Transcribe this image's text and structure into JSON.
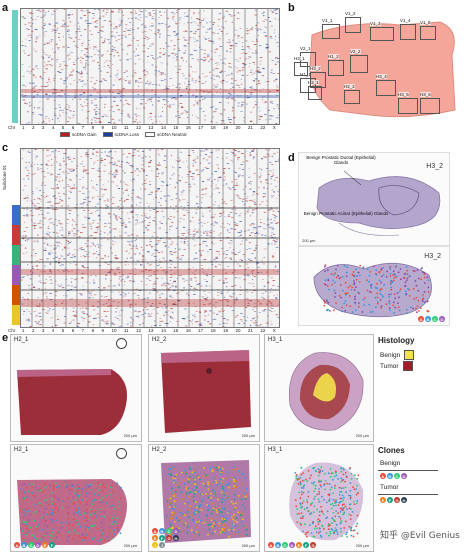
{
  "panels": {
    "a": {
      "letter": "a",
      "row_label": "Chr",
      "chromosomes": [
        "1",
        "2",
        "3",
        "4",
        "5",
        "6",
        "7",
        "8",
        "9",
        "10",
        "11",
        "12",
        "13",
        "14",
        "15",
        "16",
        "17",
        "18",
        "19",
        "20",
        "21",
        "22",
        "X"
      ],
      "legend": [
        {
          "label": "scDNA Gain",
          "color": "#b22222"
        },
        {
          "label": "scDNA Loss",
          "color": "#1f3ea0"
        },
        {
          "label": "scDNA Neutral",
          "color": "#ffffff"
        }
      ]
    },
    "b": {
      "letter": "b",
      "sections": [
        "V1_1",
        "V1_2",
        "V1_3",
        "V1_4",
        "V1_5",
        "V2_1",
        "V2_2",
        "H1_1",
        "H1_2",
        "H2_1",
        "H2_2",
        "H3_1",
        "H3_2",
        "H3_4",
        "H3_5",
        "H3_6"
      ]
    },
    "c": {
      "letter": "c",
      "row_label": "Chr",
      "side_label": "Subclone 01",
      "chromosomes": [
        "1",
        "2",
        "3",
        "4",
        "5",
        "6",
        "7",
        "8",
        "9",
        "10",
        "11",
        "12",
        "13",
        "14",
        "15",
        "16",
        "17",
        "18",
        "19",
        "20",
        "21",
        "22",
        "X"
      ]
    },
    "d": {
      "letter": "d",
      "top_label": "H3_2",
      "bottom_label": "H3_2",
      "annotation_top": "Benign Prostatic Ductal (Epithelial) Glands",
      "annotation_bottom": "Benign Prostatic Acinar (Epithelial) Glands",
      "scale": "200 µm",
      "clones": [
        "A",
        "B",
        "C",
        "D"
      ]
    },
    "e": {
      "letter": "e",
      "tiles_top": [
        {
          "label": "H2_1",
          "scale": "200 µm"
        },
        {
          "label": "H2_2",
          "scale": "200 µm"
        },
        {
          "label": "H3_1",
          "scale": "200 µm"
        }
      ],
      "tiles_bottom": [
        {
          "label": "H2_1",
          "scale": "200 µm"
        },
        {
          "label": "H2_2",
          "scale": "200 µm"
        },
        {
          "label": "H3_1",
          "scale": "200 µm"
        }
      ],
      "clone_dots_1": [
        "A",
        "B",
        "C",
        "D",
        "E",
        "F"
      ],
      "clone_dots_2": [
        "A",
        "B",
        "C",
        "D",
        "E",
        "F",
        "G",
        "H",
        "I",
        "J"
      ],
      "clone_dots_3": [
        "A",
        "B",
        "C",
        "D",
        "E",
        "F",
        "G"
      ]
    }
  },
  "histology": {
    "title": "Histology",
    "items": [
      {
        "label": "Benign",
        "color": "#f2e24a"
      },
      {
        "label": "Tumor",
        "color": "#a01c24"
      }
    ]
  },
  "clones_legend": {
    "title": "Clones",
    "benign_label": "Benign",
    "tumor_label": "Tumor",
    "benign_dots": [
      "A",
      "B",
      "C",
      "D"
    ],
    "tumor_dots": [
      "E",
      "F",
      "G",
      "H"
    ]
  },
  "watermark": "知乎 @Evil Genius",
  "colors": {
    "gain": "#b22222",
    "loss": "#1f3ea0",
    "teal_bar": "#6ed0c3",
    "tissue_pink": "#f4a69a",
    "he_tumor": "#9c2e3a",
    "he_light": "#c77aa6",
    "benign": "#f2e24a"
  }
}
